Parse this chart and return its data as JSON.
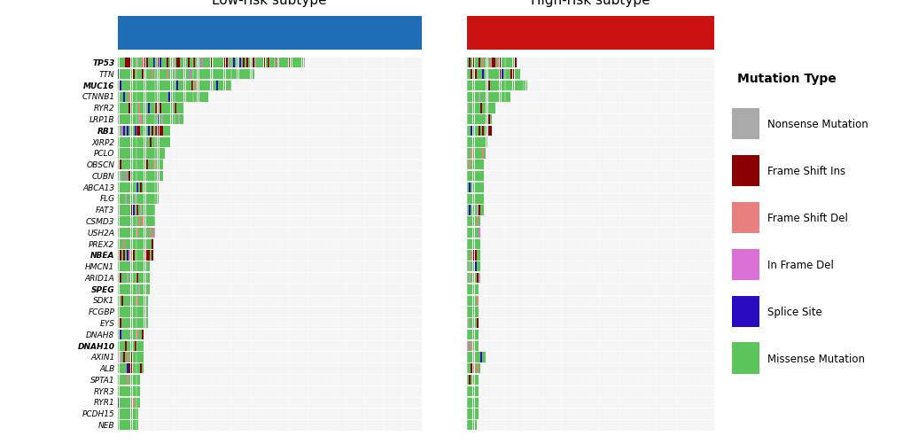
{
  "genes": [
    "TP53",
    "TTN",
    "MUC16",
    "CTNNB1",
    "RYR2",
    "LRP1B",
    "RB1",
    "XIRP2",
    "PCLO",
    "OBSCN",
    "CUBN",
    "ABCA13",
    "FLG",
    "FAT3",
    "CSMD3",
    "USH2A",
    "PREX2",
    "NBEA",
    "HMCN1",
    "ARID1A",
    "SPEG",
    "SDK1",
    "FCGBP",
    "EYS",
    "DNAH8",
    "DNAH10",
    "AXIN1",
    "ALB",
    "SPTA1",
    "RYR3",
    "RYR1",
    "PCDH15",
    "NEB"
  ],
  "bold_italic_genes": [
    "TP53",
    "MUC16",
    "RB1",
    "NBEA",
    "SPEG",
    "DNAH10"
  ],
  "low_risk_n": 160,
  "high_risk_n": 130,
  "subtype_colors": {
    "low": "#1f6eb5",
    "high": "#cc1111"
  },
  "mutation_colors": {
    "Nonsense Mutation": "#aaaaaa",
    "Frame Shift Ins": "#8b0000",
    "Frame Shift Del": "#e88080",
    "In Frame Del": "#da70d6",
    "Splice Site": "#2a0bbf",
    "Missense Mutation": "#5bc45b"
  },
  "background_color": "#f5f5f5",
  "title_low": "Low-risk subtype",
  "title_high": "High-risk subtype",
  "legend_title": "Mutation Type",
  "low_rates": [
    0.62,
    0.45,
    0.38,
    0.3,
    0.22,
    0.22,
    0.18,
    0.18,
    0.16,
    0.15,
    0.15,
    0.14,
    0.14,
    0.13,
    0.13,
    0.13,
    0.12,
    0.12,
    0.11,
    0.11,
    0.11,
    0.1,
    0.1,
    0.1,
    0.09,
    0.09,
    0.09,
    0.09,
    0.08,
    0.08,
    0.08,
    0.07,
    0.07
  ],
  "high_rates": [
    0.2,
    0.22,
    0.25,
    0.18,
    0.12,
    0.1,
    0.1,
    0.09,
    0.08,
    0.07,
    0.07,
    0.07,
    0.07,
    0.07,
    0.06,
    0.06,
    0.06,
    0.06,
    0.06,
    0.06,
    0.05,
    0.05,
    0.05,
    0.05,
    0.05,
    0.05,
    0.08,
    0.06,
    0.05,
    0.05,
    0.05,
    0.05,
    0.04
  ],
  "gene_mut_weights": {
    "TP53": [
      0.05,
      0.15,
      0.05,
      0.01,
      0.04,
      0.7
    ],
    "TTN": [
      0.02,
      0.05,
      0.03,
      0.01,
      0.01,
      0.88
    ],
    "MUC16": [
      0.03,
      0.03,
      0.03,
      0.01,
      0.01,
      0.89
    ],
    "CTNNB1": [
      0.02,
      0.02,
      0.02,
      0.01,
      0.01,
      0.92
    ],
    "RYR2": [
      0.03,
      0.03,
      0.03,
      0.01,
      0.01,
      0.89
    ],
    "LRP1B": [
      0.05,
      0.03,
      0.03,
      0.01,
      0.03,
      0.85
    ],
    "RB1": [
      0.02,
      0.2,
      0.05,
      0.02,
      0.08,
      0.63
    ],
    "XIRP2": [
      0.03,
      0.03,
      0.03,
      0.01,
      0.01,
      0.89
    ],
    "PCLO": [
      0.03,
      0.03,
      0.03,
      0.01,
      0.01,
      0.89
    ],
    "OBSCN": [
      0.03,
      0.03,
      0.03,
      0.01,
      0.01,
      0.89
    ],
    "CUBN": [
      0.03,
      0.03,
      0.03,
      0.01,
      0.01,
      0.89
    ],
    "ABCA13": [
      0.03,
      0.03,
      0.03,
      0.01,
      0.05,
      0.85
    ],
    "FLG": [
      0.03,
      0.03,
      0.03,
      0.01,
      0.01,
      0.89
    ],
    "FAT3": [
      0.03,
      0.03,
      0.03,
      0.01,
      0.01,
      0.89
    ],
    "CSMD3": [
      0.03,
      0.03,
      0.1,
      0.01,
      0.01,
      0.82
    ],
    "USH2A": [
      0.03,
      0.03,
      0.1,
      0.01,
      0.01,
      0.82
    ],
    "PREX2": [
      0.03,
      0.03,
      0.03,
      0.01,
      0.01,
      0.89
    ],
    "NBEA": [
      0.03,
      0.2,
      0.03,
      0.01,
      0.03,
      0.7
    ],
    "HMCN1": [
      0.03,
      0.03,
      0.03,
      0.01,
      0.01,
      0.89
    ],
    "ARID1A": [
      0.03,
      0.2,
      0.03,
      0.01,
      0.01,
      0.72
    ],
    "SPEG": [
      0.1,
      0.03,
      0.03,
      0.01,
      0.01,
      0.82
    ],
    "SDK1": [
      0.03,
      0.03,
      0.03,
      0.01,
      0.01,
      0.89
    ],
    "FCGBP": [
      0.03,
      0.03,
      0.03,
      0.01,
      0.01,
      0.89
    ],
    "EYS": [
      0.03,
      0.03,
      0.03,
      0.01,
      0.01,
      0.89
    ],
    "DNAH8": [
      0.03,
      0.03,
      0.03,
      0.01,
      0.05,
      0.85
    ],
    "DNAH10": [
      0.03,
      0.03,
      0.03,
      0.01,
      0.01,
      0.89
    ],
    "AXIN1": [
      0.05,
      0.15,
      0.1,
      0.01,
      0.05,
      0.64
    ],
    "ALB": [
      0.03,
      0.1,
      0.1,
      0.01,
      0.03,
      0.73
    ],
    "SPTA1": [
      0.03,
      0.1,
      0.03,
      0.01,
      0.03,
      0.8
    ],
    "RYR3": [
      0.03,
      0.03,
      0.03,
      0.01,
      0.01,
      0.89
    ],
    "RYR1": [
      0.03,
      0.03,
      0.03,
      0.01,
      0.01,
      0.89
    ],
    "PCDH15": [
      0.03,
      0.03,
      0.03,
      0.01,
      0.01,
      0.89
    ],
    "NEB": [
      0.03,
      0.03,
      0.03,
      0.01,
      0.01,
      0.89
    ]
  }
}
